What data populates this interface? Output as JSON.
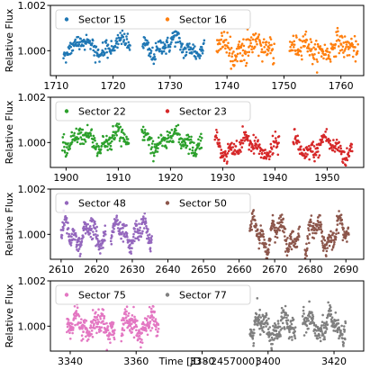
{
  "figure": {
    "xlabel": "Time [JD - 2457000]",
    "ylabel": "Relative Flux"
  },
  "chart_data": [
    {
      "type": "scatter",
      "xlim": [
        1709,
        1764
      ],
      "ylim": [
        0.9989,
        1.002
      ],
      "xticks": [
        1710,
        1720,
        1730,
        1740,
        1750,
        1760
      ],
      "yticks": [
        1.0,
        1.002
      ],
      "ytick_labels": [
        "1.000",
        "1.002"
      ],
      "ylabel": "Relative Flux",
      "legend": "top-left",
      "series": [
        {
          "name": "Sector 15",
          "color": "#1f77b4",
          "segments": [
            [
              1711.3,
              1723.0
            ],
            [
              1725.2,
              1736.0
            ]
          ],
          "level": 1.0002,
          "amp": 0.00035,
          "noise": 0.0002
        },
        {
          "name": "Sector 16",
          "color": "#ff7f0e",
          "segments": [
            [
              1738.2,
              1748.3
            ],
            [
              1751.0,
              1763.0
            ]
          ],
          "level": 1.0001,
          "amp": 0.0003,
          "noise": 0.00025
        }
      ]
    },
    {
      "type": "scatter",
      "xlim": [
        1897,
        1957
      ],
      "ylim": [
        0.9989,
        1.002
      ],
      "xticks": [
        1900,
        1910,
        1920,
        1930,
        1940,
        1950
      ],
      "yticks": [
        1.0,
        1.002
      ],
      "ytick_labels": [
        "1.000",
        "1.002"
      ],
      "ylabel": "Relative Flux",
      "legend": "top-left",
      "series": [
        {
          "name": "Sector 22",
          "color": "#2ca02c",
          "segments": [
            [
              1899.3,
              1912.0
            ],
            [
              1914.5,
              1926.0
            ]
          ],
          "level": 1.0001,
          "amp": 0.00035,
          "noise": 0.0002
        },
        {
          "name": "Sector 23",
          "color": "#d62728",
          "segments": [
            [
              1928.5,
              1940.8
            ],
            [
              1943.5,
              1954.8
            ]
          ],
          "level": 0.9998,
          "amp": 0.0004,
          "noise": 0.0002
        }
      ]
    },
    {
      "type": "scatter",
      "xlim": [
        2607,
        2695
      ],
      "ylim": [
        0.9989,
        1.002
      ],
      "xticks": [
        2610,
        2620,
        2630,
        2640,
        2650,
        2660,
        2670,
        2680,
        2690
      ],
      "yticks": [
        1.0,
        1.002
      ],
      "ytick_labels": [
        "1.000",
        "1.002"
      ],
      "ylabel": "Relative Flux",
      "legend": "top-left",
      "series": [
        {
          "name": "Sector 48",
          "color": "#9467bd",
          "segments": [
            [
              2610.0,
              2622.5
            ],
            [
              2624.0,
              2635.5
            ]
          ],
          "level": 1.0,
          "amp": 0.0005,
          "noise": 0.0002
        },
        {
          "name": "Sector 50",
          "color": "#8c564b",
          "segments": [
            [
              2663.0,
              2677.0
            ],
            [
              2678.5,
              2690.8
            ]
          ],
          "level": 1.0,
          "amp": 0.0006,
          "noise": 0.0002
        }
      ]
    },
    {
      "type": "scatter",
      "xlim": [
        3334,
        3429
      ],
      "ylim": [
        0.9989,
        1.002
      ],
      "xticks": [
        3340,
        3360,
        3380,
        3400,
        3420
      ],
      "yticks": [
        1.0,
        1.002
      ],
      "ytick_labels": [
        "1.000",
        "1.002"
      ],
      "xlabel": "Time [JD - 2457000]",
      "ylabel": "Relative Flux",
      "legend": "top-left",
      "series": [
        {
          "name": "Sector 75",
          "color": "#e377c2",
          "segments": [
            [
              3339.0,
              3353.5
            ],
            [
              3355.5,
              3366.8
            ]
          ],
          "level": 1.0,
          "amp": 0.0004,
          "noise": 0.00025
        },
        {
          "name": "Sector 77",
          "color": "#7f7f7f",
          "segments": [
            [
              3394.5,
              3408.3
            ],
            [
              3410.5,
              3423.5
            ]
          ],
          "level": 1.0,
          "amp": 0.00045,
          "noise": 0.00025
        }
      ]
    }
  ]
}
